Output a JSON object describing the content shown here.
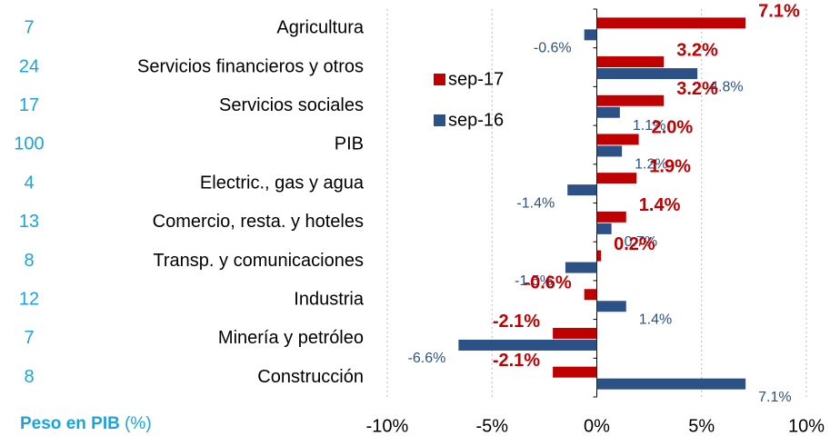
{
  "chart_data": {
    "type": "bar",
    "orientation": "horizontal",
    "categories": [
      "Agricultura",
      "Servicios financieros y otros",
      "Servicios sociales",
      "PIB",
      "Electric., gas y agua",
      "Comercio, resta. y hoteles",
      "Transp. y comunicaciones",
      "Industria",
      "Minería y petróleo",
      "Construcción"
    ],
    "weights": [
      7,
      24,
      17,
      100,
      4,
      13,
      8,
      12,
      7,
      8
    ],
    "weights_label": "Peso en PIB",
    "weights_unit": "(%)",
    "series": [
      {
        "name": "sep-17",
        "color": "#c00000",
        "values": [
          7.1,
          3.2,
          3.2,
          2.0,
          1.9,
          1.4,
          0.2,
          -0.6,
          -2.1,
          -2.1
        ],
        "value_labels": [
          "7.1%",
          "3.2%",
          "3.2%",
          "2.0%",
          "1.9%",
          "1.4%",
          "0.2%",
          "-0.6%",
          "-2.1%",
          "-2.1%"
        ]
      },
      {
        "name": "sep-16",
        "color": "#2b5186",
        "values": [
          -0.6,
          4.8,
          1.1,
          1.2,
          -1.4,
          0.7,
          -1.5,
          1.4,
          -6.6,
          7.1
        ],
        "value_labels": [
          "-0.6%",
          "4.8%",
          "1.1%",
          "1.2%",
          "-1.4%",
          "0.7%",
          "-1.5%",
          "1.4%",
          "-6.6%",
          "7.1%"
        ]
      }
    ],
    "xlim": [
      -10,
      10
    ],
    "xticks": [
      {
        "value": -10,
        "label": "-10%"
      },
      {
        "value": -5,
        "label": "-5%"
      },
      {
        "value": 0,
        "label": "0%"
      },
      {
        "value": 5,
        "label": "5%"
      },
      {
        "value": 10,
        "label": "10%"
      }
    ],
    "grid": true
  }
}
